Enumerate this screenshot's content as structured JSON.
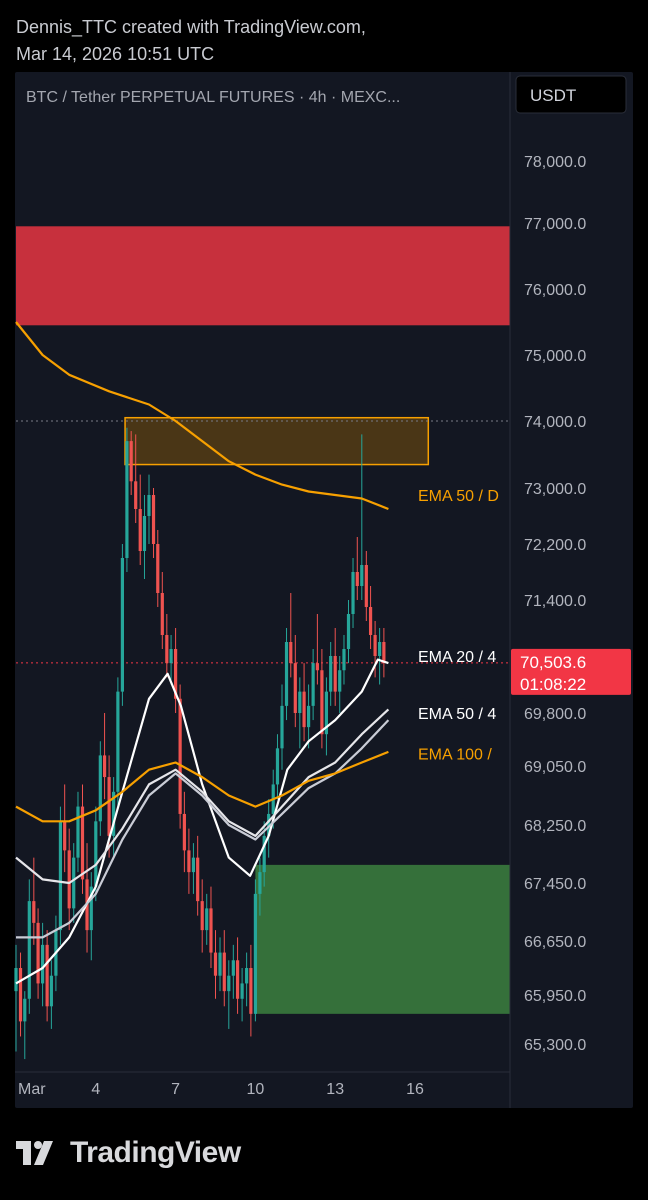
{
  "header": {
    "line1": "Dennis_TTC created with TradingView.com,",
    "line2": "Mar 14, 2026 10:51 UTC"
  },
  "chart_data": {
    "type": "candlestick",
    "title": "BTC / Tether PERPETUAL FUTURES · 4h · MEXC...",
    "currency": "USDT",
    "price_axis_ticks": [
      78000,
      77000,
      76000,
      75000,
      74000,
      73000,
      72200,
      71400,
      70600,
      69800,
      69050,
      68250,
      67450,
      66650,
      65950,
      65300
    ],
    "price_axis_labels": [
      "78,000.0",
      "77,000.0",
      "76,000.0",
      "75,000.0",
      "74,000.0",
      "73,000.0",
      "72,200.0",
      "71,400.0",
      "70,600.0",
      "69,800.0",
      "69,050.0",
      "68,250.0",
      "67,450.0",
      "66,650.0",
      "65,950.0",
      "65,300.0"
    ],
    "x_ticks": [
      {
        "day": 1,
        "label": "Mar"
      },
      {
        "day": 4,
        "label": "4"
      },
      {
        "day": 7,
        "label": "7"
      },
      {
        "day": 10,
        "label": "10"
      },
      {
        "day": 13,
        "label": "13"
      },
      {
        "day": 16,
        "label": "16"
      }
    ],
    "current_price": {
      "value": 70503.6,
      "label": "70,503.6",
      "countdown": "01:08:22",
      "color": "#f23645"
    },
    "dotted_level": 74000,
    "zones": [
      {
        "name": "supply",
        "color": "#c7303d",
        "from_day": 0.0,
        "to_day": 18.6,
        "low": 75450,
        "high": 76950
      },
      {
        "name": "resistance",
        "color": "#4a3616",
        "border": "#f7a000",
        "from_day": 4.1,
        "to_day": 15.5,
        "low": 73350,
        "high": 74050
      },
      {
        "name": "demand",
        "color": "#35703a",
        "from_day": 9.0,
        "to_day": 18.6,
        "low": 65700,
        "high": 67700
      }
    ],
    "indicator_labels": [
      {
        "text": "EMA 50 / D",
        "color": "#f7a000",
        "value": 72900
      },
      {
        "text": "EMA 20 / 4",
        "color": "#ffffff",
        "value": 70600
      },
      {
        "text": "EMA 50 / 4",
        "color": "#ffffff",
        "value": 69800
      },
      {
        "text": "EMA 100 /",
        "color": "#f7a000",
        "value": 69230
      }
    ],
    "series": [
      {
        "name": "EMA 50 / D",
        "color": "#f7a000",
        "points": [
          [
            0.0,
            75500
          ],
          [
            1.0,
            75000
          ],
          [
            2.0,
            74700
          ],
          [
            3.5,
            74450
          ],
          [
            5.0,
            74250
          ],
          [
            6.0,
            74000
          ],
          [
            7.0,
            73700
          ],
          [
            8.0,
            73400
          ],
          [
            9.0,
            73200
          ],
          [
            10.0,
            73050
          ],
          [
            11.0,
            72950
          ],
          [
            12.0,
            72900
          ],
          [
            13.0,
            72850
          ],
          [
            14.0,
            72700
          ]
        ]
      },
      {
        "name": "EMA 20 / 4",
        "color": "#ffffff",
        "points": [
          [
            0.0,
            66100
          ],
          [
            1.0,
            66300
          ],
          [
            2.0,
            66700
          ],
          [
            3.0,
            67400
          ],
          [
            4.0,
            68700
          ],
          [
            5.0,
            70000
          ],
          [
            5.7,
            70350
          ],
          [
            6.2,
            69900
          ],
          [
            7.0,
            68800
          ],
          [
            8.0,
            67800
          ],
          [
            8.8,
            67550
          ],
          [
            9.5,
            68100
          ],
          [
            10.2,
            69000
          ],
          [
            11.0,
            69400
          ],
          [
            12.0,
            69700
          ],
          [
            13.0,
            70100
          ],
          [
            13.6,
            70550
          ],
          [
            14.0,
            70500
          ]
        ]
      },
      {
        "name": "EMA 50 / 4",
        "color": "#e6e6ea",
        "points": [
          [
            0.0,
            67800
          ],
          [
            1.0,
            67500
          ],
          [
            2.0,
            67450
          ],
          [
            3.0,
            67700
          ],
          [
            4.0,
            68200
          ],
          [
            5.0,
            68800
          ],
          [
            6.0,
            69000
          ],
          [
            7.0,
            68700
          ],
          [
            8.0,
            68300
          ],
          [
            9.0,
            68100
          ],
          [
            10.0,
            68500
          ],
          [
            11.0,
            68900
          ],
          [
            12.0,
            69100
          ],
          [
            13.0,
            69500
          ],
          [
            14.0,
            69850
          ]
        ]
      },
      {
        "name": "EMA 50 / 4 (inner)",
        "color": "#c9ccd6",
        "points": [
          [
            0.0,
            66700
          ],
          [
            1.0,
            66700
          ],
          [
            2.0,
            66900
          ],
          [
            3.0,
            67300
          ],
          [
            4.0,
            68050
          ],
          [
            5.0,
            68650
          ],
          [
            6.0,
            68950
          ],
          [
            7.0,
            68650
          ],
          [
            8.0,
            68250
          ],
          [
            9.0,
            68050
          ],
          [
            10.0,
            68400
          ],
          [
            11.0,
            68750
          ],
          [
            12.0,
            68950
          ],
          [
            13.0,
            69300
          ],
          [
            14.0,
            69700
          ]
        ]
      },
      {
        "name": "EMA 100 /",
        "color": "#f7a000",
        "points": [
          [
            0.0,
            68500
          ],
          [
            1.0,
            68300
          ],
          [
            2.0,
            68300
          ],
          [
            3.0,
            68450
          ],
          [
            4.0,
            68700
          ],
          [
            5.0,
            69000
          ],
          [
            6.0,
            69100
          ],
          [
            7.0,
            68900
          ],
          [
            8.0,
            68650
          ],
          [
            9.0,
            68500
          ],
          [
            10.0,
            68650
          ],
          [
            11.0,
            68850
          ],
          [
            12.0,
            68950
          ],
          [
            13.0,
            69100
          ],
          [
            14.0,
            69250
          ]
        ]
      }
    ],
    "candles": [
      [
        0.0,
        66000,
        66600,
        65200,
        66300
      ],
      [
        0.17,
        66300,
        66500,
        65400,
        65600
      ],
      [
        0.33,
        65600,
        66000,
        65100,
        65900
      ],
      [
        0.5,
        65900,
        67500,
        65700,
        67200
      ],
      [
        0.67,
        67200,
        67800,
        66600,
        66900
      ],
      [
        0.83,
        66900,
        67100,
        65900,
        66100
      ],
      [
        1.0,
        66100,
        66900,
        65800,
        66600
      ],
      [
        1.17,
        66600,
        66800,
        65600,
        65800
      ],
      [
        1.33,
        65800,
        66400,
        65500,
        66200
      ],
      [
        1.5,
        66200,
        67000,
        66000,
        66800
      ],
      [
        1.67,
        66800,
        68500,
        66600,
        68300
      ],
      [
        1.83,
        68300,
        68800,
        67600,
        67900
      ],
      [
        2.0,
        67900,
        68200,
        66800,
        67100
      ],
      [
        2.17,
        67100,
        68000,
        66900,
        67800
      ],
      [
        2.33,
        67800,
        68700,
        67600,
        68500
      ],
      [
        2.5,
        68500,
        68800,
        67300,
        67500
      ],
      [
        2.67,
        67500,
        68000,
        66500,
        66800
      ],
      [
        2.83,
        66800,
        67600,
        66400,
        67400
      ],
      [
        3.0,
        67400,
        68500,
        67200,
        68300
      ],
      [
        3.17,
        68300,
        69400,
        68100,
        69200
      ],
      [
        3.33,
        69200,
        69800,
        68600,
        68900
      ],
      [
        3.5,
        68900,
        69200,
        67800,
        68100
      ],
      [
        3.67,
        68100,
        68900,
        67800,
        68700
      ],
      [
        3.83,
        68700,
        70300,
        68500,
        70100
      ],
      [
        4.0,
        70100,
        72200,
        69900,
        72000
      ],
      [
        4.17,
        72000,
        73900,
        71800,
        73700
      ],
      [
        4.33,
        73700,
        73850,
        72900,
        73100
      ],
      [
        4.5,
        73100,
        73800,
        72500,
        72700
      ],
      [
        4.67,
        72700,
        73200,
        71900,
        72100
      ],
      [
        4.83,
        72100,
        72900,
        71700,
        72600
      ],
      [
        5.0,
        72600,
        73200,
        72200,
        72900
      ],
      [
        5.17,
        72900,
        73000,
        72000,
        72200
      ],
      [
        5.33,
        72200,
        72400,
        71300,
        71500
      ],
      [
        5.5,
        71500,
        71800,
        70700,
        70900
      ],
      [
        5.67,
        70900,
        71200,
        70300,
        70500
      ],
      [
        5.83,
        70500,
        70900,
        70200,
        70700
      ],
      [
        6.0,
        70700,
        71000,
        69800,
        70000
      ],
      [
        6.17,
        70000,
        70200,
        68200,
        68400
      ],
      [
        6.33,
        68400,
        68700,
        67600,
        67900
      ],
      [
        6.5,
        67900,
        68200,
        67300,
        67600
      ],
      [
        6.67,
        67600,
        68000,
        67300,
        67800
      ],
      [
        6.83,
        67800,
        68100,
        67000,
        67200
      ],
      [
        7.0,
        67200,
        67500,
        66500,
        66800
      ],
      [
        7.17,
        66800,
        67300,
        66600,
        67100
      ],
      [
        7.33,
        67100,
        67400,
        66300,
        66500
      ],
      [
        7.5,
        66500,
        66800,
        65900,
        66200
      ],
      [
        7.67,
        66200,
        66700,
        66000,
        66500
      ],
      [
        7.83,
        66500,
        66800,
        65800,
        66000
      ],
      [
        8.0,
        66000,
        66400,
        65500,
        66200
      ],
      [
        8.17,
        66200,
        66600,
        65900,
        66400
      ],
      [
        8.33,
        66400,
        66700,
        65700,
        65900
      ],
      [
        8.5,
        65900,
        66300,
        65600,
        66100
      ],
      [
        8.67,
        66100,
        66500,
        65800,
        66300
      ],
      [
        8.83,
        66300,
        66600,
        65400,
        65700
      ],
      [
        9.0,
        65700,
        67500,
        65600,
        67300
      ],
      [
        9.17,
        67300,
        67800,
        67000,
        67600
      ],
      [
        9.33,
        67600,
        68300,
        67400,
        68100
      ],
      [
        9.5,
        68100,
        68600,
        67800,
        68400
      ],
      [
        9.67,
        68400,
        69000,
        68200,
        68800
      ],
      [
        9.83,
        68800,
        69500,
        68600,
        69300
      ],
      [
        10.0,
        69300,
        70200,
        69000,
        69900
      ],
      [
        10.17,
        69900,
        71000,
        69700,
        70800
      ],
      [
        10.33,
        70800,
        71500,
        70300,
        70500
      ],
      [
        10.5,
        70500,
        70900,
        69600,
        69800
      ],
      [
        10.67,
        69800,
        70300,
        69300,
        70100
      ],
      [
        10.83,
        70100,
        70500,
        69400,
        69600
      ],
      [
        11.0,
        69600,
        70200,
        69300,
        69900
      ],
      [
        11.17,
        69900,
        70700,
        69700,
        70500
      ],
      [
        11.33,
        70500,
        71200,
        70200,
        70400
      ],
      [
        11.5,
        70400,
        70700,
        69300,
        69500
      ],
      [
        11.67,
        69500,
        70300,
        69200,
        70100
      ],
      [
        11.83,
        70100,
        70800,
        69900,
        70600
      ],
      [
        12.0,
        70600,
        71000,
        69900,
        70100
      ],
      [
        12.17,
        70100,
        70600,
        69800,
        70400
      ],
      [
        12.33,
        70400,
        70900,
        70200,
        70700
      ],
      [
        12.5,
        70700,
        71400,
        70500,
        71200
      ],
      [
        12.67,
        71200,
        72000,
        71000,
        71800
      ],
      [
        12.83,
        71800,
        72300,
        71400,
        71600
      ],
      [
        13.0,
        71600,
        73800,
        71400,
        71900
      ],
      [
        13.17,
        71900,
        72100,
        71100,
        71300
      ],
      [
        13.33,
        71300,
        71600,
        70700,
        70900
      ],
      [
        13.5,
        70900,
        71100,
        70300,
        70600
      ],
      [
        13.67,
        70600,
        71000,
        70200,
        70800
      ],
      [
        13.83,
        70800,
        71000,
        70300,
        70500
      ]
    ]
  },
  "logo": {
    "text": "TradingView"
  }
}
